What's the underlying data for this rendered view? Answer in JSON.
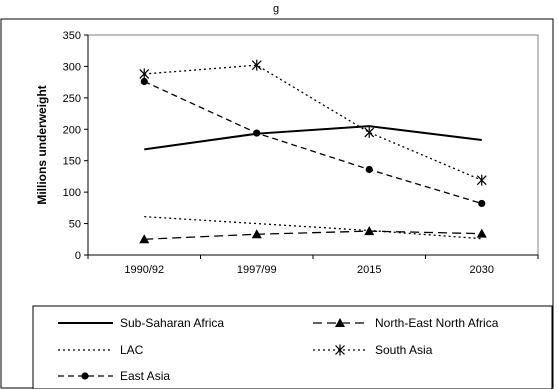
{
  "chart_data": {
    "type": "line",
    "title_fragment": "g",
    "ylabel": "Millions underweight",
    "xlabel": "",
    "categories": [
      "1990/92",
      "1997/99",
      "2015",
      "2030"
    ],
    "ylim": [
      0,
      350
    ],
    "yticks": [
      "0",
      "50",
      "100",
      "150",
      "200",
      "250",
      "300",
      "350"
    ],
    "grid": false,
    "legend_position": "bottom",
    "series": [
      {
        "name": "Sub-Saharan Africa",
        "values": [
          168,
          193,
          205,
          183
        ],
        "style": "solid",
        "marker": "none"
      },
      {
        "name": "North-East North Africa",
        "values": [
          25,
          33,
          38,
          34
        ],
        "style": "long-dash",
        "marker": "triangle"
      },
      {
        "name": "LAC",
        "values": [
          61,
          50,
          39,
          26
        ],
        "style": "dotted",
        "marker": "none"
      },
      {
        "name": "South Asia",
        "values": [
          288,
          302,
          195,
          119
        ],
        "style": "dotted",
        "marker": "star"
      },
      {
        "name": "East Asia",
        "values": [
          276,
          194,
          136,
          82
        ],
        "style": "dashed",
        "marker": "circle"
      }
    ]
  }
}
